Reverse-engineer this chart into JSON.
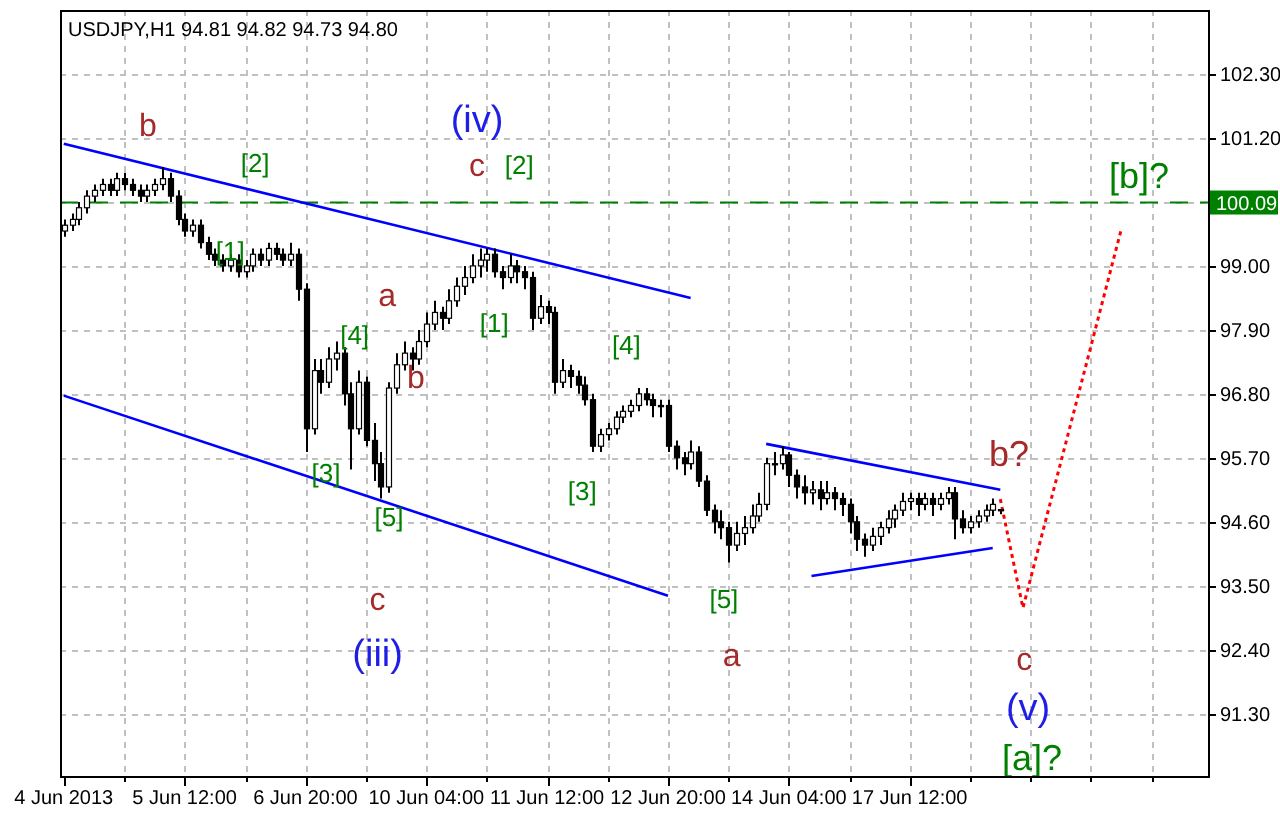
{
  "chart_data": {
    "type": "candlestick",
    "title": "USDJPY,H1  94.81 94.82 94.73 94.80",
    "categories": [
      "4 Jun 2013",
      null,
      null,
      null,
      null,
      null,
      null,
      null,
      null,
      null,
      null,
      null,
      null,
      null,
      null,
      null,
      "5 Jun 12:00",
      null,
      null,
      null,
      null,
      null,
      null,
      null,
      null,
      null,
      null,
      null,
      null,
      null,
      null,
      null,
      "6 Jun 20:00",
      null,
      null,
      null,
      null,
      null,
      null,
      null,
      null,
      null,
      null,
      null,
      null,
      null,
      null,
      null,
      "10 Jun 04:00",
      null,
      null,
      null,
      null,
      null,
      null,
      null,
      null,
      null,
      null,
      null,
      null,
      null,
      null,
      null,
      "11 Jun 12:00",
      null,
      null,
      null,
      null,
      null,
      null,
      null,
      null,
      null,
      null,
      null,
      null,
      null,
      null,
      null,
      "12 Jun 20:00",
      null,
      null,
      null,
      null,
      null,
      null,
      null,
      null,
      null,
      null,
      null,
      null,
      null,
      null,
      null,
      "14 Jun 04:00",
      null,
      null,
      null,
      null,
      null,
      null,
      null,
      null,
      null,
      null,
      null,
      null,
      null,
      null,
      null,
      "17 Jun 12:00",
      null,
      null,
      null,
      null,
      null,
      null,
      null,
      null,
      null,
      null,
      null,
      null,
      null,
      null,
      null,
      null,
      null,
      null,
      null,
      null,
      null,
      null,
      null,
      null,
      null,
      null,
      null,
      null,
      null,
      null,
      null,
      null,
      null,
      null,
      null,
      null,
      null,
      null,
      null
    ],
    "ohlc": [
      [
        99.6,
        99.8,
        99.5,
        99.7
      ],
      [
        99.7,
        99.9,
        99.6,
        99.8
      ],
      [
        99.8,
        100.1,
        99.7,
        100.0
      ],
      [
        100.0,
        100.3,
        99.9,
        100.2
      ],
      [
        100.2,
        100.4,
        100.1,
        100.3
      ],
      [
        100.3,
        100.5,
        100.2,
        100.4
      ],
      [
        100.4,
        100.5,
        100.2,
        100.3
      ],
      [
        100.3,
        100.6,
        100.2,
        100.5
      ],
      [
        100.5,
        100.6,
        100.3,
        100.4
      ],
      [
        100.4,
        100.5,
        100.2,
        100.3
      ],
      [
        100.3,
        100.4,
        100.1,
        100.2
      ],
      [
        100.2,
        100.4,
        100.1,
        100.3
      ],
      [
        100.3,
        100.5,
        100.2,
        100.4
      ],
      [
        100.4,
        100.7,
        100.3,
        100.5
      ],
      [
        100.5,
        100.6,
        100.1,
        100.2
      ],
      [
        100.2,
        100.3,
        99.7,
        99.8
      ],
      [
        99.8,
        99.9,
        99.5,
        99.6
      ],
      [
        99.6,
        99.8,
        99.5,
        99.7
      ],
      [
        99.7,
        99.8,
        99.3,
        99.4
      ],
      [
        99.4,
        99.5,
        99.1,
        99.2
      ],
      [
        99.2,
        99.3,
        99.0,
        99.1
      ],
      [
        99.1,
        99.2,
        98.9,
        99.0
      ],
      [
        99.0,
        99.2,
        98.9,
        99.1
      ],
      [
        99.1,
        99.2,
        98.8,
        98.9
      ],
      [
        98.9,
        99.1,
        98.8,
        99.0
      ],
      [
        99.0,
        99.3,
        98.9,
        99.2
      ],
      [
        99.2,
        99.3,
        99.0,
        99.1
      ],
      [
        99.1,
        99.4,
        99.0,
        99.3
      ],
      [
        99.3,
        99.4,
        99.1,
        99.2
      ],
      [
        99.2,
        99.3,
        99.0,
        99.1
      ],
      [
        99.1,
        99.4,
        99.0,
        99.2
      ],
      [
        99.2,
        99.3,
        98.4,
        98.6
      ],
      [
        98.6,
        98.7,
        95.8,
        96.2
      ],
      [
        96.2,
        97.4,
        96.1,
        97.2
      ],
      [
        97.2,
        97.4,
        96.8,
        97.0
      ],
      [
        97.0,
        97.6,
        96.9,
        97.4
      ],
      [
        97.4,
        97.7,
        97.2,
        97.5
      ],
      [
        97.5,
        97.6,
        96.6,
        96.8
      ],
      [
        96.8,
        97.0,
        95.5,
        96.2
      ],
      [
        96.2,
        97.2,
        96.1,
        97.0
      ],
      [
        97.0,
        97.1,
        95.9,
        96.0
      ],
      [
        96.0,
        96.3,
        95.3,
        95.6
      ],
      [
        95.6,
        95.8,
        95.0,
        95.2
      ],
      [
        95.2,
        97.0,
        95.1,
        96.9
      ],
      [
        96.9,
        97.5,
        96.8,
        97.3
      ],
      [
        97.3,
        97.7,
        97.2,
        97.5
      ],
      [
        97.5,
        97.6,
        97.2,
        97.4
      ],
      [
        97.4,
        97.9,
        97.3,
        97.7
      ],
      [
        97.7,
        98.2,
        97.6,
        98.0
      ],
      [
        98.0,
        98.4,
        97.9,
        98.2
      ],
      [
        98.2,
        98.3,
        97.9,
        98.1
      ],
      [
        98.1,
        98.6,
        98.0,
        98.4
      ],
      [
        98.4,
        98.8,
        98.3,
        98.65
      ],
      [
        98.65,
        99.0,
        98.5,
        98.8
      ],
      [
        98.8,
        99.2,
        98.7,
        99.0
      ],
      [
        99.0,
        99.3,
        98.8,
        99.1
      ],
      [
        99.1,
        99.3,
        98.9,
        99.2
      ],
      [
        99.2,
        99.3,
        98.8,
        98.9
      ],
      [
        98.9,
        99.0,
        98.6,
        98.8
      ],
      [
        98.8,
        99.2,
        98.7,
        99.0
      ],
      [
        99.0,
        99.1,
        98.7,
        98.9
      ],
      [
        98.9,
        99.0,
        98.6,
        98.8
      ],
      [
        98.8,
        98.9,
        97.9,
        98.1
      ],
      [
        98.1,
        98.5,
        98.0,
        98.3
      ],
      [
        98.3,
        98.4,
        98.0,
        98.2
      ],
      [
        98.2,
        98.3,
        96.8,
        97.0
      ],
      [
        97.0,
        97.4,
        96.9,
        97.2
      ],
      [
        97.2,
        97.3,
        96.9,
        97.1
      ],
      [
        97.1,
        97.2,
        96.8,
        96.95
      ],
      [
        96.95,
        97.1,
        96.6,
        96.7
      ],
      [
        96.7,
        96.8,
        95.8,
        95.9
      ],
      [
        95.9,
        96.2,
        95.8,
        96.1
      ],
      [
        96.1,
        96.3,
        96.0,
        96.2
      ],
      [
        96.2,
        96.5,
        96.1,
        96.4
      ],
      [
        96.4,
        96.6,
        96.3,
        96.5
      ],
      [
        96.5,
        96.7,
        96.4,
        96.6
      ],
      [
        96.6,
        96.9,
        96.5,
        96.8
      ],
      [
        96.8,
        96.9,
        96.6,
        96.7
      ],
      [
        96.7,
        96.8,
        96.4,
        96.6
      ],
      [
        96.6,
        96.7,
        96.4,
        96.6
      ],
      [
        96.6,
        96.7,
        95.8,
        95.9
      ],
      [
        95.9,
        96.0,
        95.5,
        95.7
      ],
      [
        95.7,
        95.8,
        95.4,
        95.6
      ],
      [
        95.6,
        96.0,
        95.5,
        95.8
      ],
      [
        95.8,
        95.9,
        95.2,
        95.3
      ],
      [
        95.3,
        95.4,
        94.7,
        94.8
      ],
      [
        94.8,
        94.9,
        94.4,
        94.6
      ],
      [
        94.6,
        94.8,
        94.3,
        94.5
      ],
      [
        94.5,
        94.6,
        93.9,
        94.2
      ],
      [
        94.2,
        94.6,
        94.1,
        94.4
      ],
      [
        94.4,
        94.7,
        94.2,
        94.5
      ],
      [
        94.5,
        94.9,
        94.4,
        94.7
      ],
      [
        94.7,
        95.1,
        94.6,
        94.9
      ],
      [
        94.9,
        95.7,
        94.8,
        95.6
      ],
      [
        95.6,
        95.8,
        95.4,
        95.6
      ],
      [
        95.6,
        95.9,
        95.5,
        95.75
      ],
      [
        95.75,
        95.8,
        95.2,
        95.4
      ],
      [
        95.4,
        95.5,
        95.0,
        95.2
      ],
      [
        95.2,
        95.4,
        94.9,
        95.1
      ],
      [
        95.1,
        95.3,
        94.9,
        95.15
      ],
      [
        95.15,
        95.3,
        94.8,
        95.0
      ],
      [
        95.0,
        95.3,
        94.9,
        95.1
      ],
      [
        95.1,
        95.2,
        94.8,
        95.0
      ],
      [
        95.0,
        95.1,
        94.7,
        94.9
      ],
      [
        94.9,
        95.0,
        94.4,
        94.6
      ],
      [
        94.6,
        94.7,
        94.1,
        94.3
      ],
      [
        94.3,
        94.4,
        94.0,
        94.2
      ],
      [
        94.2,
        94.5,
        94.1,
        94.35
      ],
      [
        94.35,
        94.6,
        94.2,
        94.5
      ],
      [
        94.5,
        94.8,
        94.4,
        94.65
      ],
      [
        94.65,
        94.9,
        94.5,
        94.8
      ],
      [
        94.8,
        95.1,
        94.7,
        94.95
      ],
      [
        94.95,
        95.1,
        94.8,
        95.0
      ],
      [
        95.0,
        95.1,
        94.7,
        94.9
      ],
      [
        94.9,
        95.1,
        94.8,
        95.0
      ],
      [
        95.0,
        95.1,
        94.7,
        94.9
      ],
      [
        94.9,
        95.1,
        94.8,
        95.0
      ],
      [
        95.0,
        95.2,
        94.9,
        95.1
      ],
      [
        95.1,
        95.2,
        94.3,
        94.65
      ],
      [
        94.65,
        94.8,
        94.4,
        94.5
      ],
      [
        94.5,
        94.7,
        94.4,
        94.6
      ],
      [
        94.6,
        94.8,
        94.5,
        94.7
      ],
      [
        94.7,
        94.9,
        94.6,
        94.8
      ],
      [
        94.8,
        95.0,
        94.7,
        94.9
      ],
      [
        94.81,
        94.82,
        94.73,
        94.8
      ],
      null,
      null,
      null,
      null,
      null,
      null,
      null,
      null,
      null,
      null,
      null,
      null,
      null,
      null,
      null,
      null,
      null,
      null,
      null,
      null,
      null,
      null,
      null,
      null,
      null,
      null,
      null
    ],
    "series": [
      {
        "type": "line",
        "color": "#0000ff",
        "line_style": "solid",
        "values": [
          101.1,
          null,
          null,
          null,
          null,
          null,
          null,
          null,
          null,
          null,
          null,
          null,
          null,
          null,
          null,
          null,
          null,
          null,
          null,
          null,
          null,
          null,
          null,
          null,
          null,
          null,
          null,
          null,
          null,
          null,
          null,
          null,
          null,
          null,
          null,
          null,
          null,
          null,
          null,
          null,
          null,
          null,
          null,
          null,
          null,
          null,
          null,
          null,
          null,
          null,
          null,
          null,
          null,
          null,
          null,
          null,
          null,
          null,
          null,
          null,
          null,
          null,
          null,
          null,
          null,
          null,
          null,
          null,
          null,
          null,
          null,
          null,
          null,
          null,
          null,
          null,
          null,
          null,
          null,
          null,
          null,
          null,
          null,
          98.45,
          null,
          null,
          null,
          null,
          null,
          null,
          null,
          null,
          null,
          null,
          null,
          null,
          null,
          null,
          null,
          null,
          null,
          null,
          null,
          null,
          null,
          null,
          null,
          null,
          null,
          null,
          null,
          null,
          null,
          null,
          null,
          null,
          null,
          null,
          null,
          null,
          null,
          null,
          null,
          null,
          null,
          null,
          null,
          null,
          null,
          null,
          null,
          null,
          null,
          null,
          null,
          null,
          null,
          null,
          null,
          null,
          null,
          null,
          null,
          null,
          null,
          null,
          null,
          null,
          null,
          null,
          null,
          null
        ]
      },
      {
        "type": "line",
        "color": "#0000ff",
        "line_style": "solid",
        "values": [
          96.77,
          null,
          null,
          null,
          null,
          null,
          null,
          null,
          null,
          null,
          null,
          null,
          null,
          null,
          null,
          null,
          null,
          null,
          null,
          null,
          null,
          null,
          null,
          null,
          null,
          null,
          null,
          null,
          null,
          null,
          null,
          null,
          null,
          null,
          null,
          null,
          null,
          null,
          null,
          null,
          null,
          null,
          null,
          null,
          null,
          null,
          null,
          null,
          null,
          null,
          null,
          null,
          null,
          null,
          null,
          null,
          null,
          null,
          null,
          null,
          null,
          null,
          null,
          null,
          null,
          null,
          null,
          null,
          null,
          null,
          null,
          null,
          null,
          null,
          null,
          null,
          null,
          null,
          null,
          null,
          93.33,
          null,
          null,
          null,
          null,
          null,
          null,
          null,
          null,
          null,
          null,
          null,
          null,
          null,
          null,
          null,
          null,
          null,
          null,
          null,
          null,
          null,
          null,
          null,
          null,
          null,
          null,
          null,
          null,
          null,
          null,
          null,
          null,
          null,
          null,
          null,
          null,
          null,
          null,
          null,
          null,
          null,
          null,
          null,
          null,
          null,
          null,
          null,
          null,
          null,
          null,
          null,
          null,
          null,
          null,
          null,
          null,
          null,
          null,
          null,
          null,
          null,
          null,
          null,
          null,
          null,
          null,
          null,
          null,
          null,
          null,
          null
        ]
      },
      {
        "type": "line",
        "color": "#0000ff",
        "line_style": "solid",
        "values": [
          null,
          null,
          null,
          null,
          null,
          null,
          null,
          null,
          null,
          null,
          null,
          null,
          null,
          null,
          null,
          null,
          null,
          null,
          null,
          null,
          null,
          null,
          null,
          null,
          null,
          null,
          null,
          null,
          null,
          null,
          null,
          null,
          null,
          null,
          null,
          null,
          null,
          null,
          null,
          null,
          null,
          null,
          null,
          null,
          null,
          null,
          null,
          null,
          null,
          null,
          null,
          null,
          null,
          null,
          null,
          null,
          null,
          null,
          null,
          null,
          null,
          null,
          null,
          null,
          null,
          null,
          null,
          null,
          null,
          null,
          null,
          null,
          null,
          null,
          null,
          null,
          null,
          null,
          null,
          null,
          null,
          null,
          null,
          null,
          null,
          null,
          null,
          null,
          null,
          null,
          null,
          null,
          null,
          95.94,
          null,
          null,
          null,
          null,
          null,
          null,
          null,
          null,
          null,
          null,
          null,
          null,
          null,
          null,
          null,
          null,
          null,
          null,
          null,
          null,
          null,
          null,
          null,
          null,
          null,
          null,
          null,
          null,
          null,
          null,
          95.15,
          null,
          null,
          null,
          null,
          null,
          null,
          null,
          null,
          null,
          null,
          null,
          null,
          null,
          null,
          null,
          null,
          null,
          null,
          null,
          null,
          null,
          null,
          null,
          null,
          null,
          null,
          null
        ]
      },
      {
        "type": "line",
        "color": "#0000ff",
        "line_style": "solid",
        "values": [
          null,
          null,
          null,
          null,
          null,
          null,
          null,
          null,
          null,
          null,
          null,
          null,
          null,
          null,
          null,
          null,
          null,
          null,
          null,
          null,
          null,
          null,
          null,
          null,
          null,
          null,
          null,
          null,
          null,
          null,
          null,
          null,
          null,
          null,
          null,
          null,
          null,
          null,
          null,
          null,
          null,
          null,
          null,
          null,
          null,
          null,
          null,
          null,
          null,
          null,
          null,
          null,
          null,
          null,
          null,
          null,
          null,
          null,
          null,
          null,
          null,
          null,
          null,
          null,
          null,
          null,
          null,
          null,
          null,
          null,
          null,
          null,
          null,
          null,
          null,
          null,
          null,
          null,
          null,
          null,
          null,
          null,
          null,
          null,
          null,
          null,
          null,
          null,
          null,
          null,
          null,
          null,
          null,
          null,
          null,
          null,
          null,
          null,
          null,
          93.67,
          null,
          null,
          null,
          null,
          null,
          null,
          null,
          null,
          null,
          null,
          null,
          null,
          null,
          null,
          null,
          null,
          null,
          null,
          null,
          null,
          null,
          null,
          null,
          94.15,
          null,
          null,
          null,
          null,
          null,
          null,
          null,
          null,
          null,
          null,
          null,
          null,
          null,
          null,
          null,
          null,
          null,
          null,
          null,
          null,
          null,
          null,
          null,
          null,
          null,
          null,
          null,
          null
        ]
      },
      {
        "type": "line",
        "color": "#ff0000",
        "line_style": "dotted",
        "values": [
          null,
          null,
          null,
          null,
          null,
          null,
          null,
          null,
          null,
          null,
          null,
          null,
          null,
          null,
          null,
          null,
          null,
          null,
          null,
          null,
          null,
          null,
          null,
          null,
          null,
          null,
          null,
          null,
          null,
          null,
          null,
          null,
          null,
          null,
          null,
          null,
          null,
          null,
          null,
          null,
          null,
          null,
          null,
          null,
          null,
          null,
          null,
          null,
          null,
          null,
          null,
          null,
          null,
          null,
          null,
          null,
          null,
          null,
          null,
          null,
          null,
          null,
          null,
          null,
          null,
          null,
          null,
          null,
          null,
          null,
          null,
          null,
          null,
          null,
          null,
          null,
          null,
          null,
          null,
          null,
          null,
          null,
          null,
          null,
          null,
          null,
          null,
          null,
          null,
          null,
          null,
          null,
          null,
          null,
          null,
          null,
          null,
          null,
          null,
          null,
          null,
          null,
          null,
          null,
          null,
          null,
          null,
          null,
          null,
          null,
          null,
          null,
          null,
          null,
          null,
          null,
          null,
          null,
          null,
          null,
          null,
          null,
          null,
          null,
          94.99,
          null,
          null,
          93.12,
          null,
          null,
          null,
          null,
          null,
          null,
          null,
          null,
          null,
          null,
          null,
          null,
          99.62,
          null,
          null,
          null,
          null,
          null,
          null,
          null,
          null,
          null,
          null,
          null
        ]
      }
    ],
    "ref_lines": [
      {
        "axis": "y",
        "value": 100.09,
        "label": "100.09",
        "color": "#008000",
        "line_style": "dashed"
      }
    ],
    "annotations": [
      "b",
      "[2]",
      "[1]",
      "(iv)",
      "c",
      "[2]",
      "a",
      "[4]",
      "[1]",
      "[4]",
      "b",
      "[3]",
      "[5]",
      "[3]",
      "c",
      "(iii)",
      "[5]",
      "a",
      "b?",
      "[b]?",
      "c",
      "(v)",
      "[a]?"
    ],
    "ylim": [
      90.23,
      103.4
    ],
    "yticks": [
      {
        "value": 91.3,
        "label": "91.30"
      },
      {
        "value": 92.4,
        "label": "92.40"
      },
      {
        "value": 93.5,
        "label": "93.50"
      },
      {
        "value": 94.6,
        "label": "94.60"
      },
      {
        "value": 95.7,
        "label": "95.70"
      },
      {
        "value": 96.8,
        "label": "96.80"
      },
      {
        "value": 97.9,
        "label": "97.90"
      },
      {
        "value": 99.0,
        "label": "99.00"
      },
      {
        "value": 100.1,
        "label": null
      },
      {
        "value": 101.2,
        "label": "101.20"
      },
      {
        "value": 102.3,
        "label": "102.30"
      }
    ],
    "grid": true
  }
}
